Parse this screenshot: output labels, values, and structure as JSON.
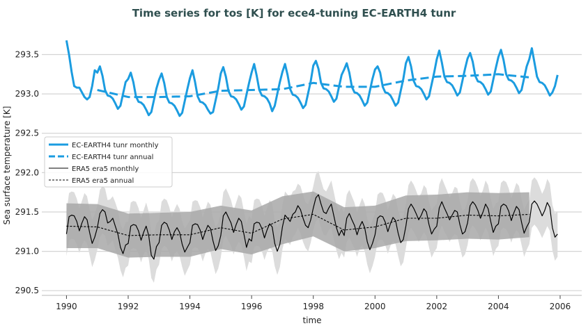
{
  "chart_data": {
    "type": "line",
    "title": "Time series for tos [K] for ece4-tuning EC-EARTH4 tunr",
    "xlabel": "time",
    "ylabel": "Sea surface temperature [K]",
    "xlim": [
      1989.2,
      2006.7
    ],
    "ylim": [
      290.44,
      293.84
    ],
    "xticks": [
      1990,
      1992,
      1994,
      1996,
      1998,
      2000,
      2002,
      2004,
      2006
    ],
    "yticks": [
      290.5,
      291.0,
      291.5,
      292.0,
      292.5,
      293.0,
      293.5
    ],
    "ytick_labels": [
      "290.5",
      "291.0",
      "291.5",
      "292.0",
      "292.5",
      "293.0",
      "293.5"
    ],
    "grid": "horizontal",
    "legend_placement": "center-left",
    "colors": {
      "model": "#1b9ce0",
      "obs": "#000000",
      "obs_band_annual": "#a8a8a8",
      "obs_band_monthly": "#dcdcdc",
      "title": "#2f4f4f"
    },
    "monthly_start": 1990,
    "series": [
      {
        "name": "EC-EARTH4 tunr monthly",
        "style": "solid",
        "color": "#1b9ce0",
        "values": [
          293.68,
          293.5,
          293.28,
          293.1,
          293.08,
          293.08,
          293.02,
          292.96,
          292.93,
          292.96,
          293.1,
          293.3,
          293.27,
          293.35,
          293.23,
          293.05,
          292.98,
          292.97,
          292.94,
          292.88,
          292.81,
          292.85,
          293.0,
          293.15,
          293.19,
          293.27,
          293.15,
          292.97,
          292.9,
          292.89,
          292.86,
          292.8,
          292.73,
          292.77,
          292.92,
          293.07,
          293.18,
          293.26,
          293.14,
          292.96,
          292.89,
          292.88,
          292.85,
          292.79,
          292.72,
          292.76,
          292.91,
          293.06,
          293.2,
          293.3,
          293.15,
          292.97,
          292.9,
          292.89,
          292.86,
          292.8,
          292.75,
          292.77,
          292.92,
          293.07,
          293.26,
          293.34,
          293.22,
          293.04,
          292.97,
          292.96,
          292.93,
          292.87,
          292.8,
          292.84,
          292.99,
          293.14,
          293.27,
          293.38,
          293.23,
          293.05,
          292.98,
          292.97,
          292.94,
          292.88,
          292.78,
          292.85,
          293.0,
          293.15,
          293.28,
          293.38,
          293.24,
          293.06,
          292.99,
          292.98,
          292.95,
          292.89,
          292.82,
          292.86,
          293.01,
          293.16,
          293.36,
          293.42,
          293.32,
          293.14,
          293.07,
          293.06,
          293.03,
          292.97,
          292.9,
          292.94,
          293.09,
          293.24,
          293.31,
          293.39,
          293.27,
          293.09,
          293.02,
          293.01,
          292.98,
          292.92,
          292.85,
          292.89,
          293.04,
          293.19,
          293.31,
          293.35,
          293.27,
          293.09,
          293.02,
          293.01,
          292.98,
          292.92,
          292.85,
          292.89,
          293.04,
          293.19,
          293.39,
          293.47,
          293.35,
          293.17,
          293.1,
          293.09,
          293.06,
          293.0,
          292.93,
          292.97,
          293.12,
          293.27,
          293.44,
          293.55,
          293.4,
          293.22,
          293.15,
          293.14,
          293.11,
          293.05,
          292.98,
          293.02,
          293.17,
          293.32,
          293.45,
          293.52,
          293.41,
          293.23,
          293.16,
          293.15,
          293.12,
          293.06,
          292.99,
          293.03,
          293.18,
          293.33,
          293.47,
          293.56,
          293.43,
          293.25,
          293.18,
          293.17,
          293.14,
          293.08,
          293.01,
          293.05,
          293.2,
          293.35,
          293.44,
          293.58,
          293.4,
          293.22,
          293.15,
          293.14,
          293.11,
          293.05,
          292.98,
          293.02,
          293.1,
          293.24
        ]
      },
      {
        "name": "EC-EARTH4 tunr annual",
        "style": "dashed",
        "color": "#1b9ce0",
        "x": [
          1991,
          1992,
          1993,
          1994,
          1995,
          1996,
          1997,
          1998,
          1999,
          2000,
          2001,
          2002,
          2003,
          2004,
          2005
        ],
        "values": [
          293.05,
          292.96,
          292.96,
          292.97,
          293.04,
          293.05,
          293.06,
          293.14,
          293.09,
          293.09,
          293.17,
          293.22,
          293.23,
          293.25,
          293.21
        ]
      },
      {
        "name": "ERA5 era5 monthly",
        "style": "solid",
        "color": "#000000",
        "values": [
          291.22,
          291.44,
          291.46,
          291.45,
          291.38,
          291.26,
          291.36,
          291.44,
          291.4,
          291.24,
          291.1,
          291.18,
          291.3,
          291.48,
          291.53,
          291.5,
          291.36,
          291.38,
          291.42,
          291.32,
          291.22,
          291.05,
          290.97,
          291.08,
          291.1,
          291.32,
          291.34,
          291.33,
          291.26,
          291.14,
          291.24,
          291.32,
          291.2,
          290.95,
          290.9,
          291.06,
          291.11,
          291.33,
          291.37,
          291.35,
          291.27,
          291.15,
          291.25,
          291.3,
          291.24,
          291.09,
          290.99,
          291.05,
          291.11,
          291.33,
          291.35,
          291.34,
          291.27,
          291.15,
          291.25,
          291.33,
          291.29,
          291.13,
          291.01,
          291.07,
          291.2,
          291.45,
          291.5,
          291.43,
          291.36,
          291.24,
          291.34,
          291.42,
          291.38,
          291.22,
          291.05,
          291.16,
          291.13,
          291.35,
          291.37,
          291.36,
          291.29,
          291.17,
          291.27,
          291.35,
          291.31,
          291.1,
          291.0,
          291.09,
          291.31,
          291.46,
          291.42,
          291.38,
          291.47,
          291.5,
          291.58,
          291.53,
          291.42,
          291.33,
          291.3,
          291.4,
          291.55,
          291.68,
          291.72,
          291.6,
          291.5,
          291.48,
          291.55,
          291.6,
          291.45,
          291.3,
          291.2,
          291.27,
          291.2,
          291.42,
          291.48,
          291.4,
          291.33,
          291.21,
          291.31,
          291.38,
          291.3,
          291.12,
          291.02,
          291.1,
          291.21,
          291.42,
          291.45,
          291.44,
          291.37,
          291.25,
          291.35,
          291.43,
          291.39,
          291.23,
          291.11,
          291.15,
          291.32,
          291.54,
          291.6,
          291.55,
          291.48,
          291.4,
          291.46,
          291.54,
          291.5,
          291.34,
          291.22,
          291.28,
          291.32,
          291.55,
          291.63,
          291.55,
          291.48,
          291.4,
          291.46,
          291.52,
          291.5,
          291.34,
          291.22,
          291.25,
          291.36,
          291.58,
          291.63,
          291.59,
          291.52,
          291.42,
          291.5,
          291.6,
          291.54,
          291.38,
          291.24,
          291.32,
          291.35,
          291.57,
          291.6,
          291.58,
          291.51,
          291.39,
          291.49,
          291.57,
          291.53,
          291.37,
          291.23,
          291.31,
          291.37,
          291.6,
          291.64,
          291.6,
          291.53,
          291.45,
          291.52,
          291.62,
          291.56,
          291.3,
          291.18,
          291.22
        ]
      },
      {
        "name": "ERA5 era5 annual",
        "style": "dashed",
        "color": "#000000",
        "x": [
          1990,
          1991,
          1992,
          1993,
          1994,
          1995,
          1996,
          1997,
          1998,
          1999,
          2000,
          2001,
          2002,
          2003,
          2004,
          2005
        ],
        "values": [
          291.32,
          291.31,
          291.2,
          291.21,
          291.21,
          291.3,
          291.23,
          291.41,
          291.47,
          291.27,
          291.31,
          291.42,
          291.42,
          291.46,
          291.45,
          291.47
        ]
      }
    ],
    "obs_annual_band": {
      "x": [
        1990,
        1991,
        1992,
        1993,
        1994,
        1995,
        1996,
        1997,
        1998,
        1999,
        2000,
        2001,
        2002,
        2003,
        2004,
        2005
      ],
      "upper": [
        291.61,
        291.6,
        291.48,
        291.49,
        291.5,
        291.58,
        291.52,
        291.7,
        291.76,
        291.56,
        291.58,
        291.71,
        291.72,
        291.75,
        291.74,
        291.75
      ],
      "lower": [
        291.04,
        291.04,
        290.92,
        290.93,
        290.93,
        291.03,
        290.96,
        291.09,
        291.19,
        291.0,
        291.04,
        291.13,
        291.14,
        291.16,
        291.15,
        291.18
      ]
    },
    "obs_monthly_band_halfwidth": [
      0.28,
      0.3,
      0.3,
      0.3,
      0.29,
      0.28,
      0.28,
      0.3,
      0.3,
      0.29,
      0.3,
      0.29
    ],
    "legend": [
      "EC-EARTH4 tunr monthly",
      "EC-EARTH4 tunr annual",
      "ERA5 era5 monthly",
      "ERA5 era5 annual"
    ]
  }
}
